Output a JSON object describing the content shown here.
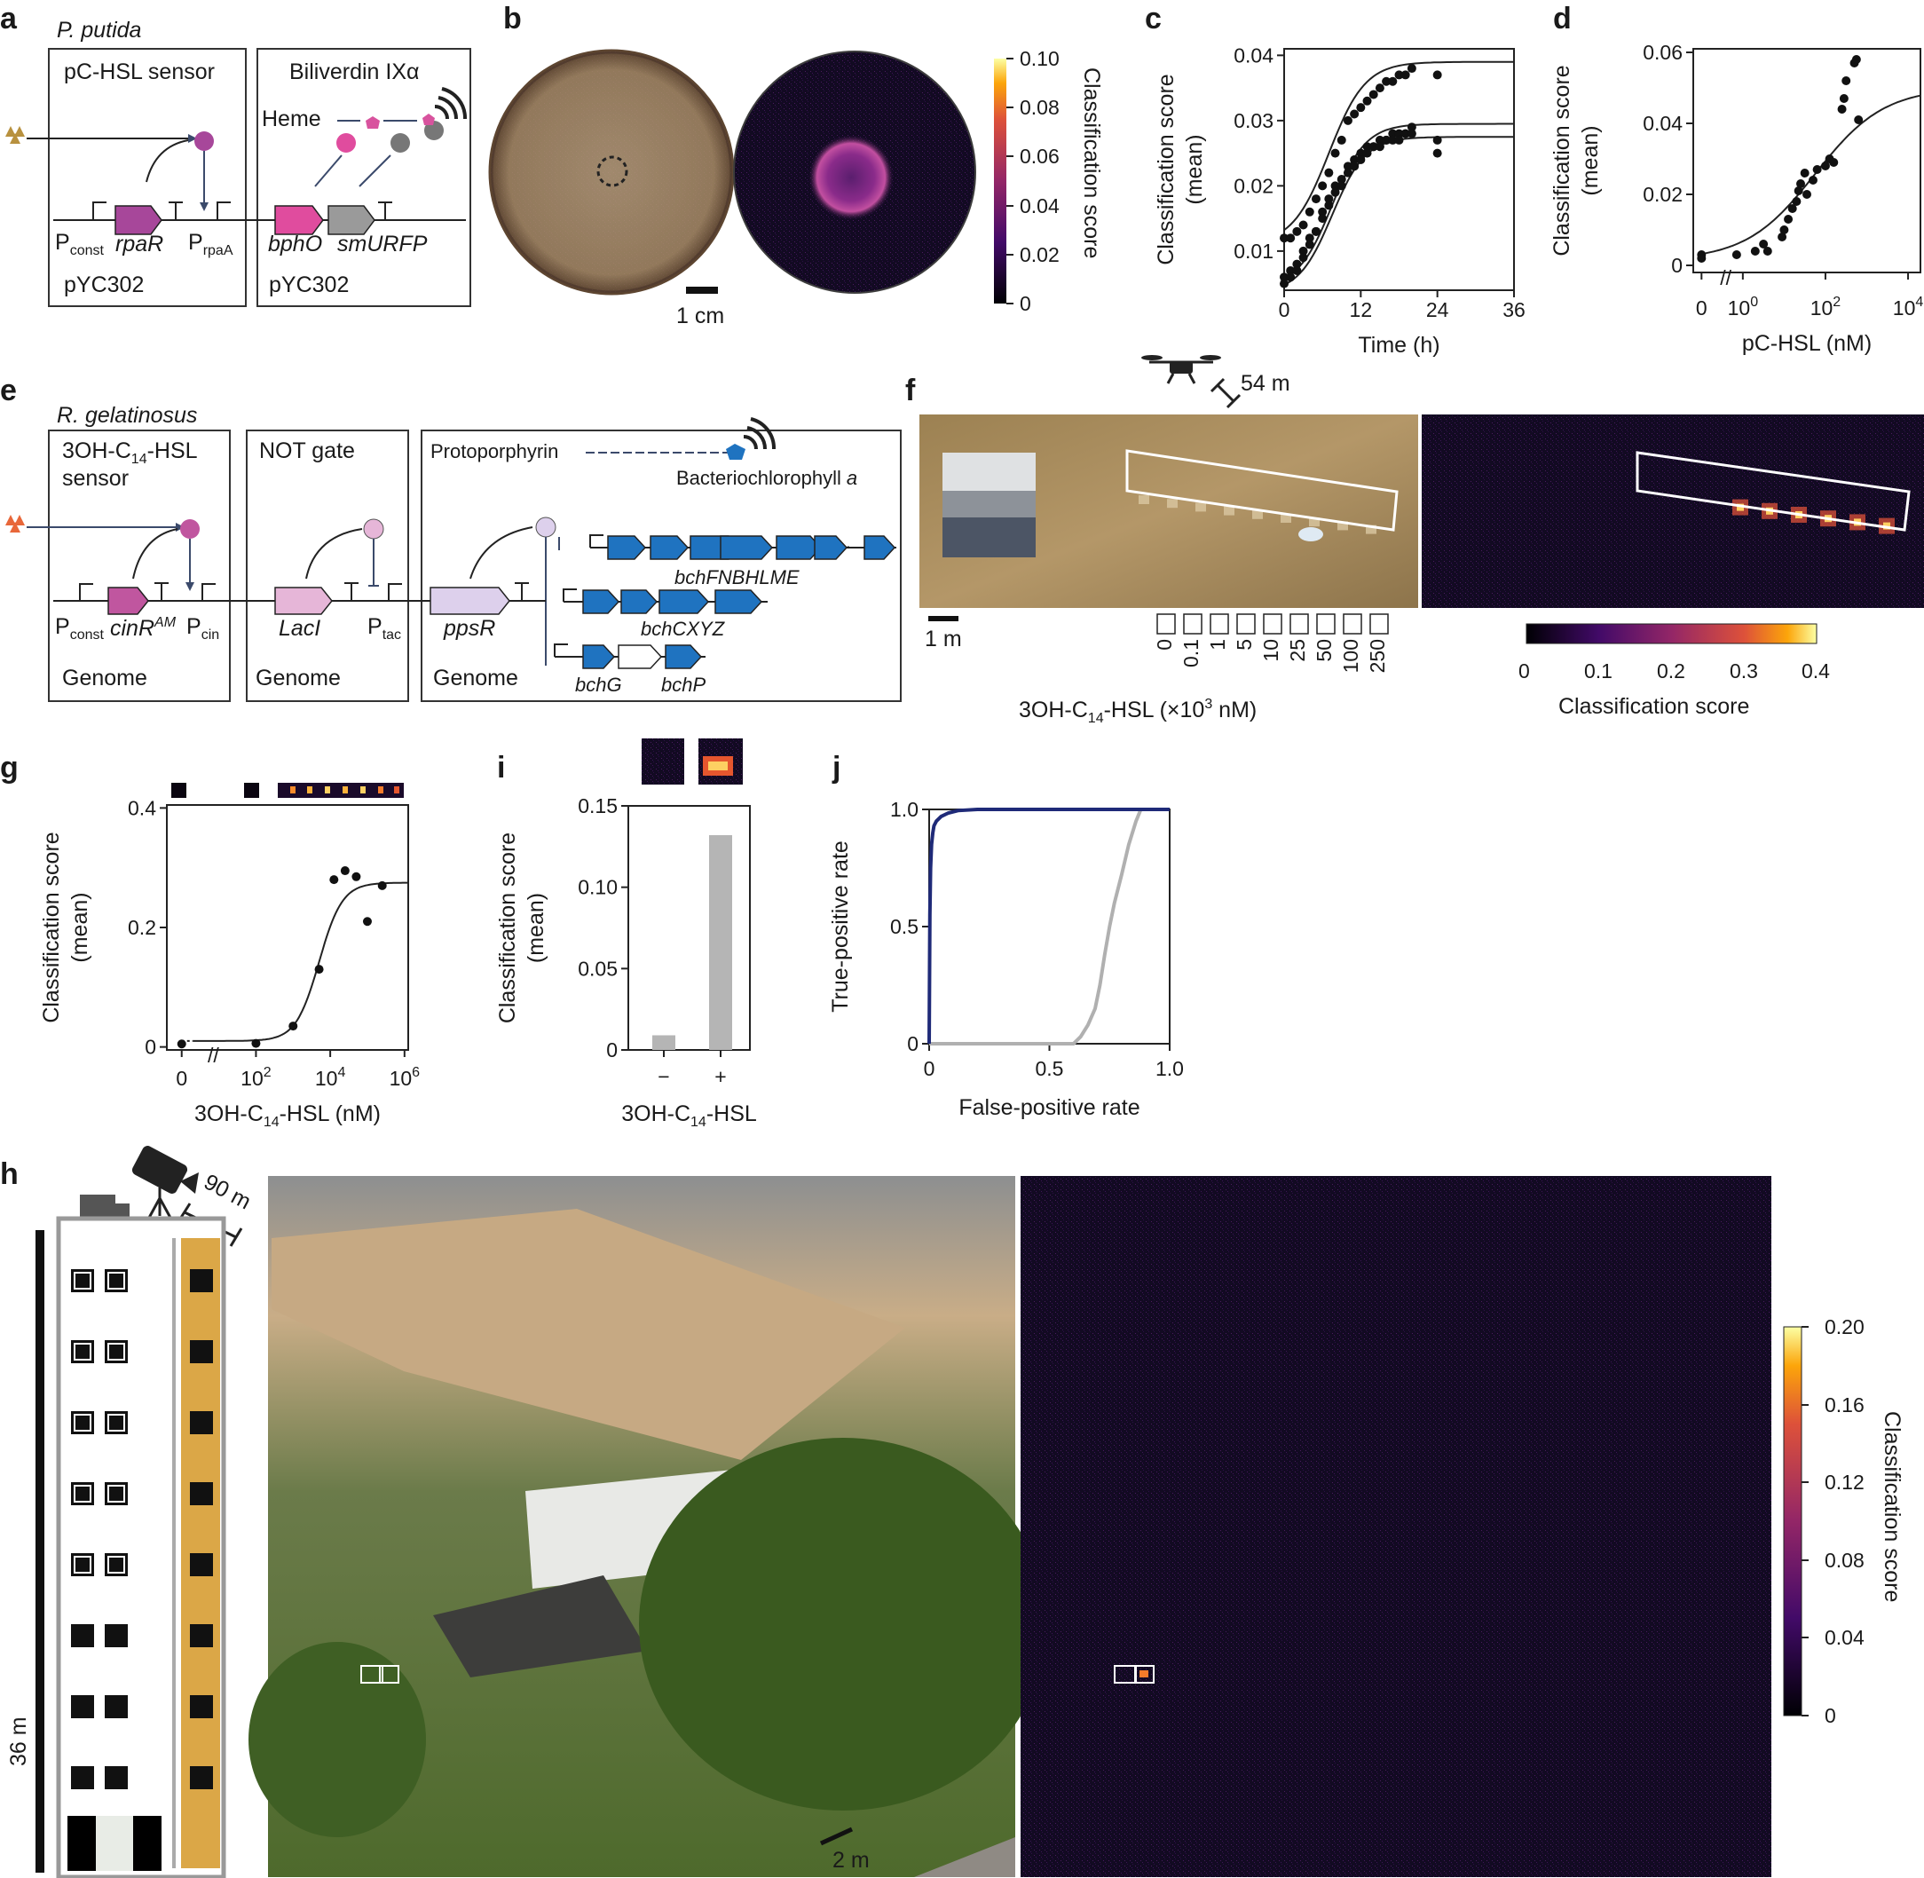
{
  "panel_labels": {
    "a": "a",
    "b": "b",
    "c": "c",
    "d": "d",
    "e": "e",
    "f": "f",
    "g": "g",
    "h": "h",
    "i": "i",
    "j": "j"
  },
  "panel_a": {
    "organism": "P. putida",
    "sensor_title": "pC-HSL sensor",
    "reporter_title": "Biliverdin IXα",
    "heme": "Heme",
    "p_const": "P",
    "p_const_sub": "const",
    "rpaR": "rpaR",
    "p_rpaA": "P",
    "p_rpaA_sub": "rpaA",
    "bphO": "bphO",
    "smURFP": "smURFP",
    "plasmid_1": "pYC302",
    "plasmid_2": "pYC302",
    "colors": {
      "rpaR": "#a7479a",
      "bphO": "#e04c9e",
      "smURFP": "#9a9a9a",
      "ligand": "#b8913f"
    }
  },
  "panel_b": {
    "scale": "1 cm",
    "colorbar_ticks": [
      "0.10",
      "0.08",
      "0.06",
      "0.04",
      "0.02",
      "0"
    ],
    "colorbar_label": "Classification score"
  },
  "panel_e": {
    "organism": "R. gelatinosus",
    "sensor_title_1": "3OH-C",
    "sensor_title_sub": "14",
    "sensor_title_2": "-HSL",
    "sensor_title_3": "sensor",
    "not_gate": "NOT gate",
    "protoporphyrin": "Protoporphyrin",
    "bchl": "Bacteriochlorophyll",
    "bchl_a": "a",
    "p_const": "P",
    "p_const_sub": "const",
    "cinR": "cinR",
    "cinR_sup": "AM",
    "p_cin": "P",
    "p_cin_sub": "cin",
    "lacI": "LacI",
    "p_tac": "P",
    "p_tac_sub": "tac",
    "ppsR": "ppsR",
    "bchFNBHLME": "bchFNBHLME",
    "bchCXYZ": "bchCXYZ",
    "bchG": "bchG",
    "bchP": "bchP",
    "genome_1": "Genome",
    "genome_2": "Genome",
    "genome_3": "Genome",
    "colors": {
      "cinR": "#c0569f",
      "lacI": "#e6b6d8",
      "ppsR": "#ddd0ec",
      "bch": "#1f73c0",
      "ligand": "#e8673a"
    }
  },
  "panel_f": {
    "distance": "54 m",
    "scale": "1 m",
    "concentrations": [
      "0",
      "0.1",
      "1",
      "5",
      "10",
      "25",
      "50",
      "100",
      "250"
    ],
    "xlabel_1": "3OH-C",
    "xlabel_sub": "14",
    "xlabel_2": "-HSL (×10",
    "xlabel_sup": "3",
    "xlabel_3": " nM)",
    "colorbar_ticks": [
      "0",
      "0.1",
      "0.2",
      "0.3",
      "0.4"
    ],
    "colorbar_label": "Classification score"
  },
  "panel_h": {
    "distance": "90 m",
    "building_height": "36 m",
    "scale": "2 m",
    "colorbar_ticks": [
      "0.20",
      "0.16",
      "0.12",
      "0.08",
      "0.04",
      "0"
    ],
    "colorbar_label": "Classification score"
  },
  "chart_data": [
    {
      "panel": "c",
      "type": "scatter",
      "xlabel": "Time (h)",
      "ylabel": "Classification score (mean)",
      "xlim": [
        0,
        36
      ],
      "ylim": [
        0.004,
        0.041
      ],
      "xticks": [
        "0",
        "12",
        "24",
        "36"
      ],
      "yticks": [
        "0.01",
        "0.02",
        "0.03",
        "0.04"
      ],
      "series": [
        {
          "x": [
            0,
            1,
            2,
            3,
            4,
            5,
            6,
            7,
            8,
            9,
            10,
            11,
            12,
            13,
            14,
            15,
            16,
            17,
            18,
            19,
            20,
            24
          ],
          "y": [
            0.012,
            0.012,
            0.013,
            0.014,
            0.016,
            0.018,
            0.02,
            0.022,
            0.025,
            0.027,
            0.03,
            0.031,
            0.032,
            0.033,
            0.034,
            0.035,
            0.036,
            0.036,
            0.037,
            0.037,
            0.038,
            0.037
          ]
        },
        {
          "x": [
            0,
            1,
            2,
            3,
            4,
            5,
            6,
            7,
            8,
            9,
            10,
            11,
            12,
            13,
            14,
            15,
            16,
            17,
            18,
            19,
            20,
            24
          ],
          "y": [
            0.006,
            0.007,
            0.008,
            0.01,
            0.012,
            0.013,
            0.016,
            0.018,
            0.02,
            0.021,
            0.023,
            0.024,
            0.025,
            0.026,
            0.026,
            0.027,
            0.027,
            0.028,
            0.028,
            0.028,
            0.029,
            0.027
          ]
        },
        {
          "x": [
            0,
            1,
            2,
            3,
            4,
            5,
            6,
            7,
            8,
            9,
            10,
            11,
            12,
            13,
            14,
            15,
            16,
            17,
            18,
            19,
            20,
            24
          ],
          "y": [
            0.005,
            0.006,
            0.007,
            0.009,
            0.011,
            0.013,
            0.015,
            0.017,
            0.019,
            0.02,
            0.022,
            0.023,
            0.024,
            0.025,
            0.026,
            0.026,
            0.027,
            0.027,
            0.027,
            0.028,
            0.028,
            0.025
          ]
        }
      ],
      "fits": [
        {
          "top": 0.039,
          "bottom": 0.011,
          "mid": 7,
          "slope": 0.35
        },
        {
          "top": 0.0295,
          "bottom": 0.0045,
          "mid": 7.5,
          "slope": 0.38
        },
        {
          "top": 0.0275,
          "bottom": 0.0035,
          "mid": 7.5,
          "slope": 0.38
        }
      ]
    },
    {
      "panel": "d",
      "type": "scatter",
      "xlabel": "pC-HSL (nM)",
      "ylabel": "Classification score (mean)",
      "xscale": "log",
      "xlim_log10": [
        -1.2,
        4.3
      ],
      "ylim": [
        -0.002,
        0.061
      ],
      "xticks": [
        {
          "label": "0",
          "v": -1
        },
        {
          "label": "10",
          "sup": "0",
          "v": 0
        },
        {
          "label": "10",
          "sup": "2",
          "v": 2
        },
        {
          "label": "10",
          "sup": "4",
          "v": 4
        }
      ],
      "yticks": [
        "0",
        "0.02",
        "0.04",
        "0.06"
      ],
      "points": [
        {
          "logx": -1,
          "y": 0.003
        },
        {
          "logx": -1,
          "y": 0.002
        },
        {
          "logx": -0.15,
          "y": 0.003
        },
        {
          "logx": 0.3,
          "y": 0.004
        },
        {
          "logx": 0.5,
          "y": 0.006
        },
        {
          "logx": 0.6,
          "y": 0.004
        },
        {
          "logx": 0.95,
          "y": 0.008
        },
        {
          "logx": 1.0,
          "y": 0.01
        },
        {
          "logx": 1.1,
          "y": 0.013
        },
        {
          "logx": 1.2,
          "y": 0.016
        },
        {
          "logx": 1.3,
          "y": 0.018
        },
        {
          "logx": 1.35,
          "y": 0.021
        },
        {
          "logx": 1.4,
          "y": 0.023
        },
        {
          "logx": 1.5,
          "y": 0.026
        },
        {
          "logx": 1.55,
          "y": 0.02
        },
        {
          "logx": 1.7,
          "y": 0.024
        },
        {
          "logx": 1.8,
          "y": 0.027
        },
        {
          "logx": 2.0,
          "y": 0.028
        },
        {
          "logx": 2.1,
          "y": 0.03
        },
        {
          "logx": 2.2,
          "y": 0.029
        },
        {
          "logx": 2.4,
          "y": 0.044
        },
        {
          "logx": 2.45,
          "y": 0.047
        },
        {
          "logx": 2.5,
          "y": 0.052
        },
        {
          "logx": 2.7,
          "y": 0.057
        },
        {
          "logx": 2.75,
          "y": 0.058
        },
        {
          "logx": 2.8,
          "y": 0.041
        }
      ],
      "fit": {
        "top": 0.05,
        "bottom": 0.0015,
        "mid_log10": 1.75,
        "slope": 1.2
      }
    },
    {
      "panel": "g",
      "type": "scatter",
      "xlabel_1": "3OH-C",
      "xlabel_sub": "14",
      "xlabel_2": "-HSL (nM)",
      "ylabel": "Classification score (mean)",
      "xscale": "log",
      "xlim_log10": [
        -0.4,
        6.1
      ],
      "ylim": [
        -0.005,
        0.405
      ],
      "xticks": [
        {
          "label": "0",
          "v": 0
        },
        {
          "label": "10",
          "sup": "2",
          "v": 2
        },
        {
          "label": "10",
          "sup": "4",
          "v": 4
        },
        {
          "label": "10",
          "sup": "6",
          "v": 6
        }
      ],
      "yticks": [
        "0",
        "0.2",
        "0.4"
      ],
      "points": [
        {
          "logx": 0,
          "y": 0.005
        },
        {
          "logx": 2,
          "y": 0.006
        },
        {
          "logx": 3,
          "y": 0.035
        },
        {
          "logx": 3.7,
          "y": 0.13
        },
        {
          "logx": 4.1,
          "y": 0.28
        },
        {
          "logx": 4.4,
          "y": 0.295
        },
        {
          "logx": 4.7,
          "y": 0.285
        },
        {
          "logx": 5.0,
          "y": 0.21
        },
        {
          "logx": 5.4,
          "y": 0.27
        }
      ],
      "fit": {
        "top": 0.275,
        "bottom": 0.01,
        "mid_log10": 3.7,
        "slope": 3.2
      }
    },
    {
      "panel": "i",
      "type": "bar",
      "categories": [
        "−",
        "+"
      ],
      "values": [
        0.009,
        0.132
      ],
      "xlabel_1": "3OH-C",
      "xlabel_sub": "14",
      "xlabel_2": "-HSL",
      "ylabel": "Classification score (mean)",
      "ylim": [
        0,
        0.15
      ],
      "yticks": [
        "0",
        "0.05",
        "0.10",
        "0.15"
      ]
    },
    {
      "panel": "j",
      "type": "line",
      "xlabel": "False-positive rate",
      "ylabel": "True-positive rate",
      "xlim": [
        0,
        1
      ],
      "ylim": [
        0,
        1
      ],
      "xticks": [
        "0",
        "0.5",
        "1.0"
      ],
      "yticks": [
        "0",
        "0.5",
        "1.0"
      ],
      "series": [
        {
          "color": "#1f2a78",
          "x": [
            0,
            0.003,
            0.006,
            0.01,
            0.015,
            0.02,
            0.03,
            0.05,
            0.08,
            0.12,
            0.2,
            0.4,
            1.0
          ],
          "y": [
            0,
            0.55,
            0.75,
            0.85,
            0.9,
            0.93,
            0.95,
            0.97,
            0.985,
            0.995,
            1.0,
            1.0,
            1.0
          ]
        },
        {
          "color": "#b0b0b0",
          "x": [
            0,
            0.6,
            0.63,
            0.66,
            0.69,
            0.71,
            0.73,
            0.75,
            0.77,
            0.8,
            0.83,
            0.86,
            0.88,
            1.0
          ],
          "y": [
            0,
            0,
            0.03,
            0.08,
            0.15,
            0.25,
            0.38,
            0.5,
            0.6,
            0.72,
            0.85,
            0.95,
            1.0,
            1.0
          ]
        }
      ]
    }
  ]
}
